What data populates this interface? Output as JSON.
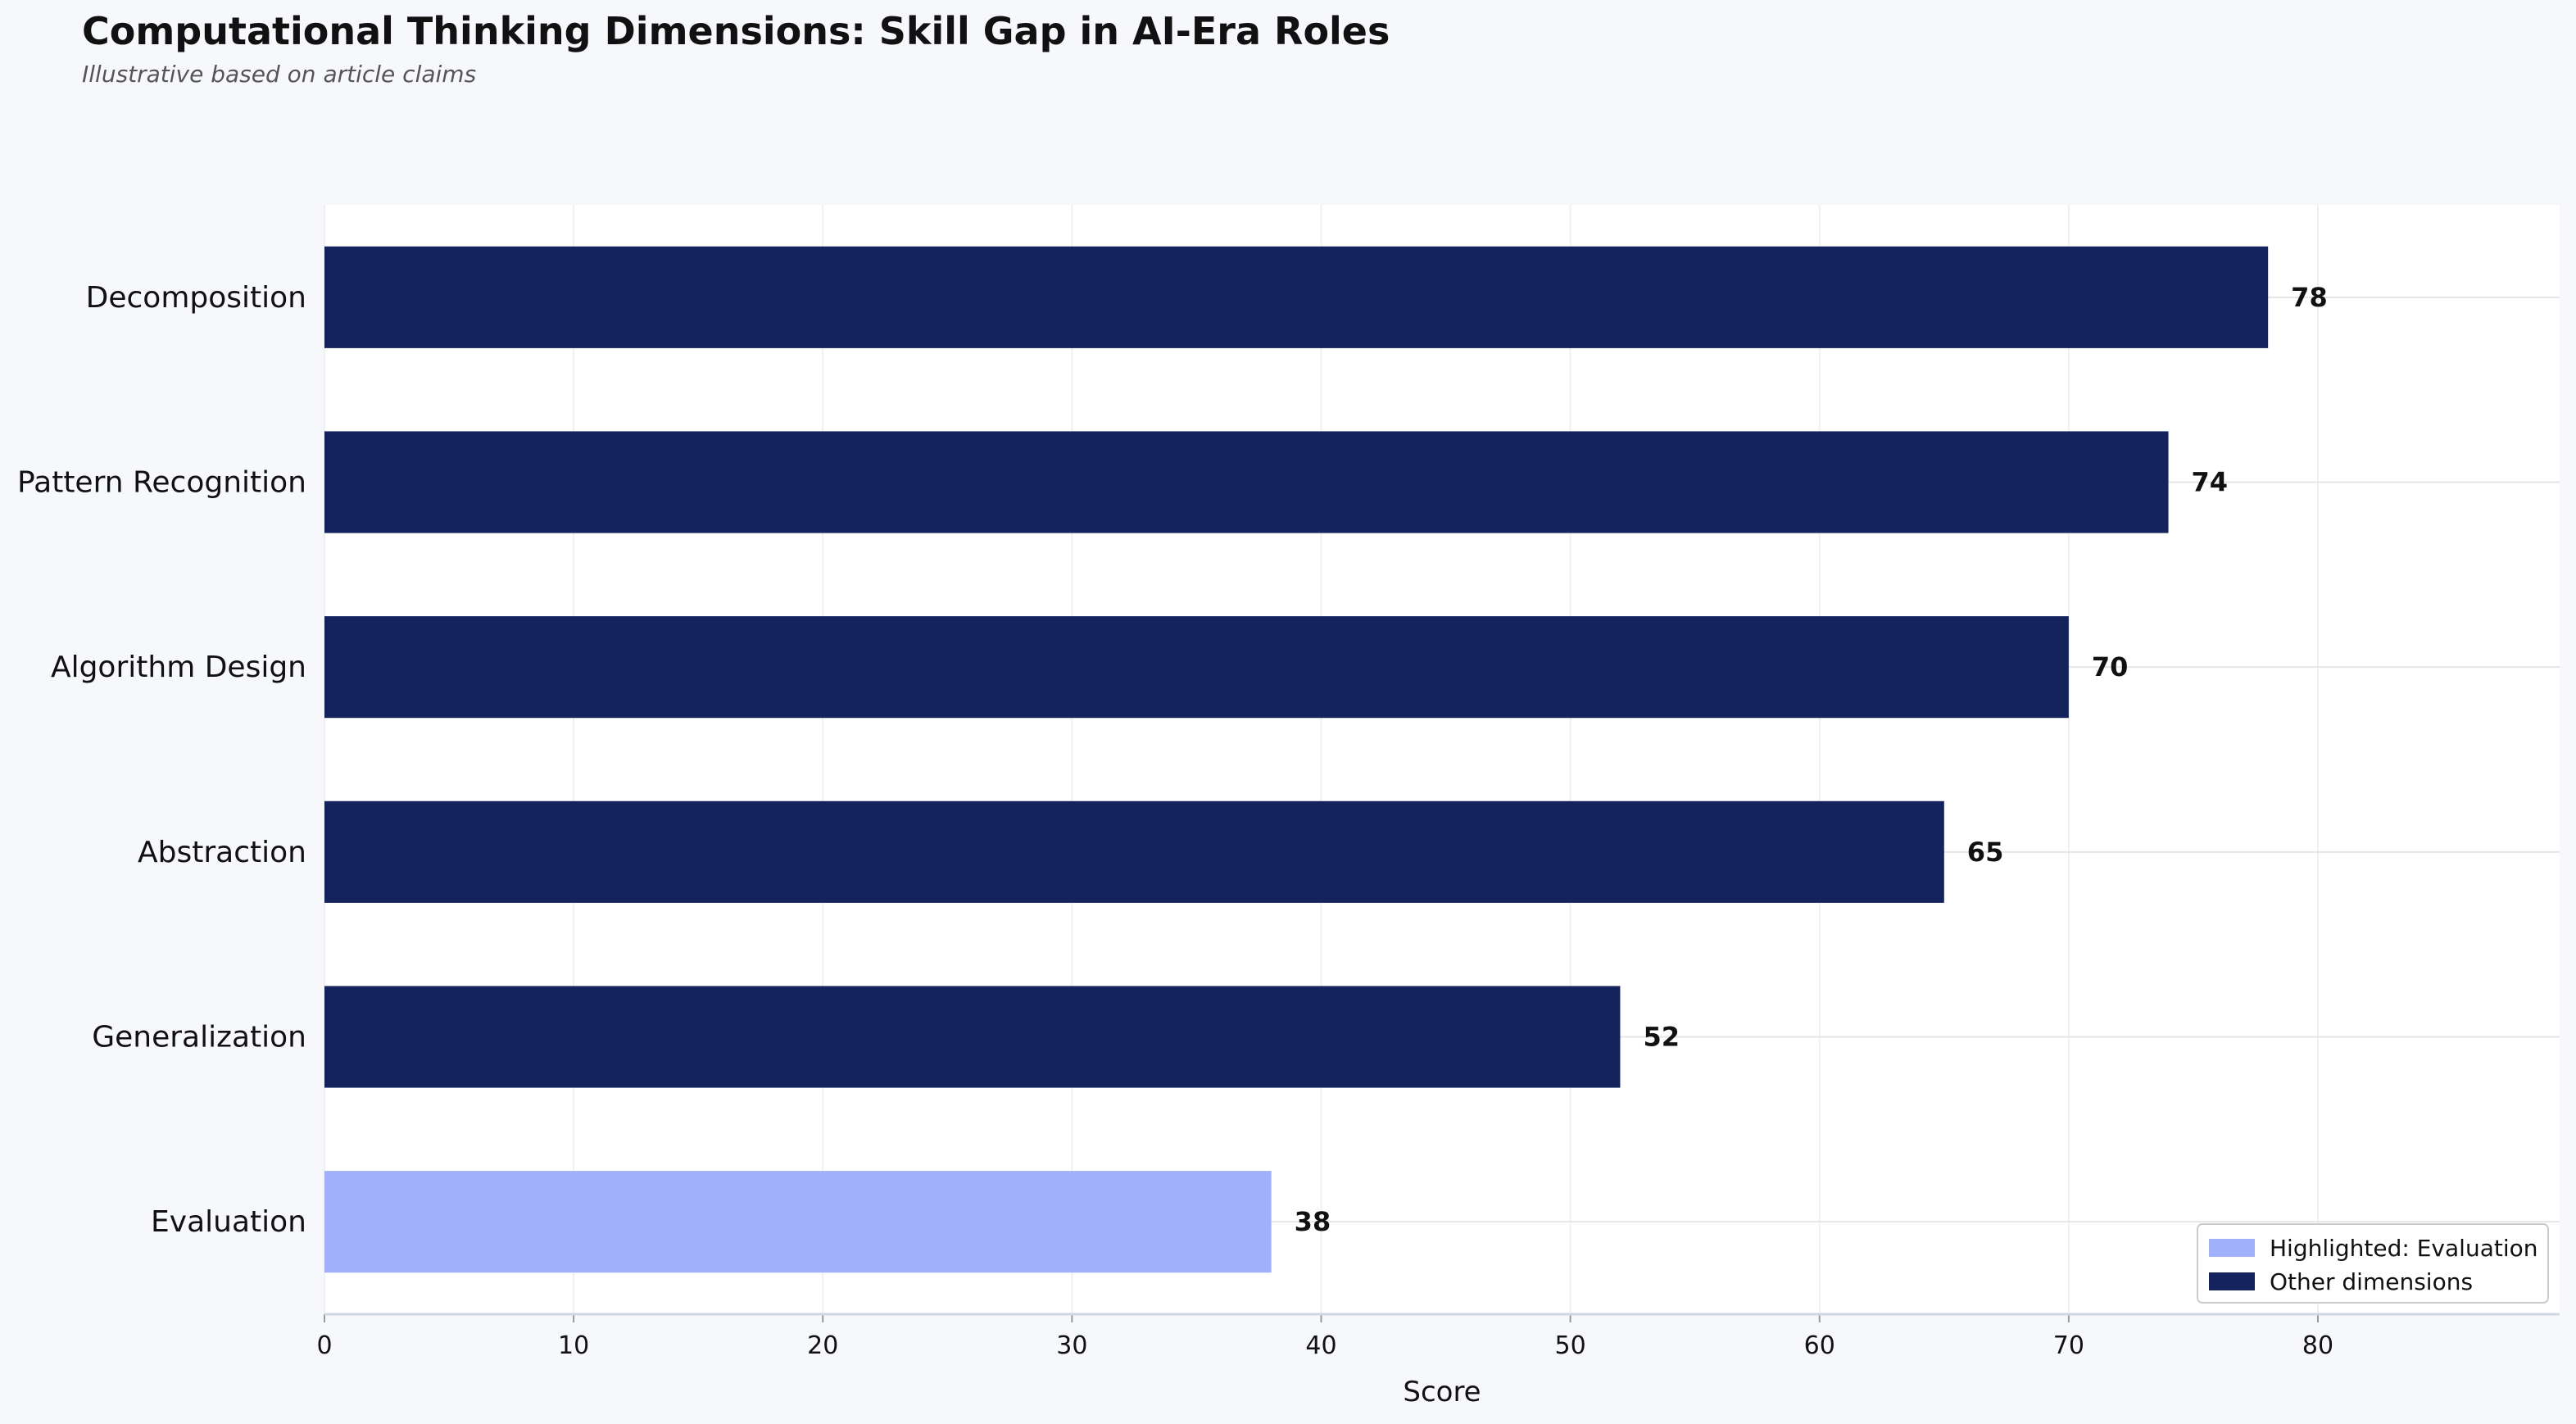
{
  "chart_data": {
    "type": "bar",
    "orientation": "horizontal",
    "title": "Computational Thinking Dimensions: Skill Gap in AI-Era Roles",
    "subtitle": "Illustrative based on article claims",
    "xlabel": "Score",
    "ylabel": "",
    "xlim": [
      0,
      89.7
    ],
    "xticks": [
      "0",
      "10",
      "20",
      "30",
      "40",
      "50",
      "60",
      "70",
      "80"
    ],
    "xtick_values": [
      0,
      10,
      20,
      30,
      40,
      50,
      60,
      70,
      80
    ],
    "grid": true,
    "categories": [
      "Decomposition",
      "Pattern Recognition",
      "Algorithm Design",
      "Abstraction",
      "Generalization",
      "Evaluation"
    ],
    "values": [
      78,
      74,
      70,
      65,
      52,
      38
    ],
    "value_labels": [
      "78",
      "74",
      "70",
      "65",
      "52",
      "38"
    ],
    "highlighted": [
      "Evaluation"
    ],
    "colors": {
      "highlight": "#a0b0fb",
      "other": "#15235c",
      "background": "#f7f8fc",
      "plot_background": "#ffffff",
      "grid": "#e6e6e6"
    },
    "legend": {
      "placement": "lower-right",
      "entries": [
        {
          "label": "Highlighted: Evaluation",
          "color": "#a0b0fb"
        },
        {
          "label": "Other dimensions",
          "color": "#15235c"
        }
      ]
    }
  }
}
